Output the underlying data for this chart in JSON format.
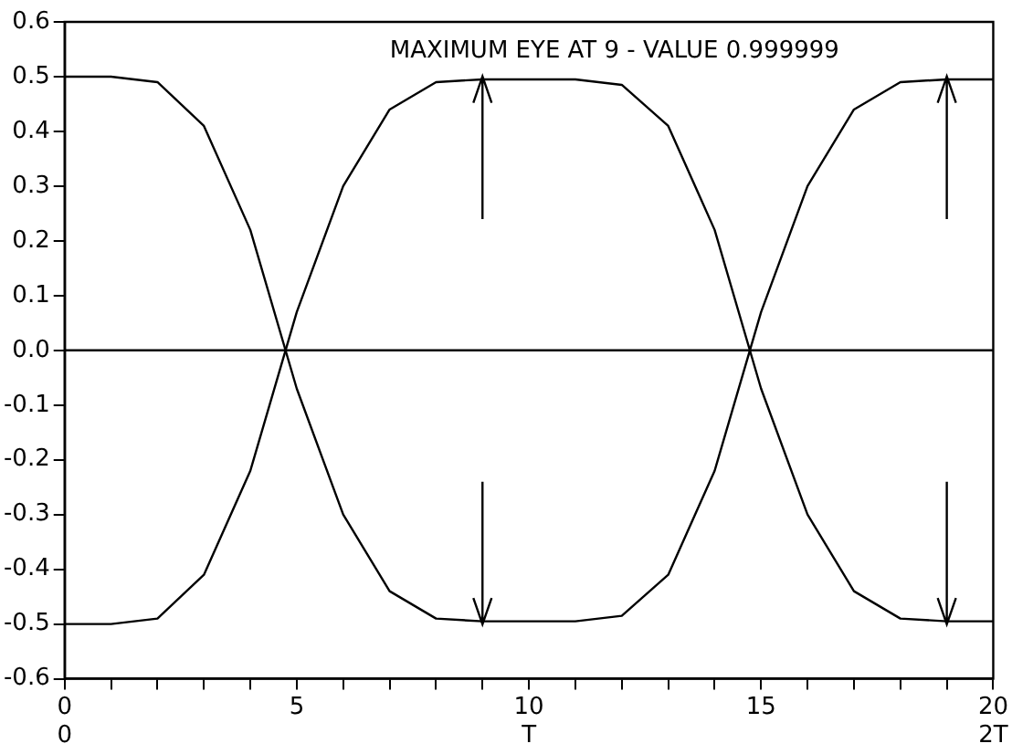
{
  "chart_data": {
    "type": "line",
    "x": [
      0,
      1,
      2,
      3,
      4,
      5,
      6,
      7,
      8,
      9,
      10,
      11,
      12,
      13,
      14,
      15,
      16,
      17,
      18,
      19,
      20
    ],
    "series": [
      {
        "color": "#000000",
        "values": [
          0.5,
          0.5,
          0.49,
          0.41,
          0.22,
          -0.07,
          -0.3,
          -0.44,
          -0.49,
          -0.495,
          -0.495,
          -0.495,
          -0.485,
          -0.41,
          -0.22,
          0.07,
          0.3,
          0.44,
          0.49,
          0.495,
          0.495
        ]
      },
      {
        "color": "#000000",
        "values": [
          -0.5,
          -0.5,
          -0.49,
          -0.41,
          -0.22,
          0.07,
          0.3,
          0.44,
          0.49,
          0.495,
          0.495,
          0.495,
          0.485,
          0.41,
          0.22,
          -0.07,
          -0.3,
          -0.44,
          -0.49,
          -0.495,
          -0.495
        ]
      }
    ],
    "xlim": [
      0,
      20
    ],
    "xticks": [
      {
        "value": 0,
        "label": "0\n0"
      },
      {
        "value": 1,
        "label": null
      },
      {
        "value": 2,
        "label": null
      },
      {
        "value": 3,
        "label": null
      },
      {
        "value": 4,
        "label": null
      },
      5,
      {
        "value": 6,
        "label": null
      },
      {
        "value": 7,
        "label": null
      },
      {
        "value": 8,
        "label": null
      },
      {
        "value": 9,
        "label": null
      },
      {
        "value": 10,
        "label": "10\nT"
      },
      {
        "value": 11,
        "label": null
      },
      {
        "value": 12,
        "label": null
      },
      {
        "value": 13,
        "label": null
      },
      {
        "value": 14,
        "label": null
      },
      15,
      {
        "value": 16,
        "label": null
      },
      {
        "value": 17,
        "label": null
      },
      {
        "value": 18,
        "label": null
      },
      {
        "value": 19,
        "label": null
      },
      {
        "value": 20,
        "label": "20\n2T"
      }
    ],
    "ylim": [
      -0.6,
      0.6
    ],
    "yticks": [
      {
        "value": -0.6,
        "label": "-0.6"
      },
      {
        "value": -0.5,
        "label": "-0.5"
      },
      {
        "value": -0.4,
        "label": "-0.4"
      },
      {
        "value": -0.3,
        "label": "-0.3"
      },
      {
        "value": -0.2,
        "label": "-0.2"
      },
      {
        "value": -0.1,
        "label": "-0.1"
      },
      {
        "value": 0,
        "label": "0.0"
      },
      {
        "value": 0.1,
        "label": "0.1"
      },
      {
        "value": 0.2,
        "label": "0.2"
      },
      {
        "value": 0.3,
        "label": "0.3"
      },
      {
        "value": 0.4,
        "label": "0.4"
      },
      {
        "value": 0.5,
        "label": "0.5"
      },
      {
        "value": 0.6,
        "label": "0.6"
      }
    ],
    "ref_lines": [
      {
        "axis": "y",
        "value": 0,
        "color": "#000000"
      }
    ],
    "annotations": [
      "MAXIMUM EYE AT 9 - VALUE 0.999999"
    ],
    "grid": false,
    "legend": false,
    "marker": "none",
    "line_style": "solid"
  }
}
